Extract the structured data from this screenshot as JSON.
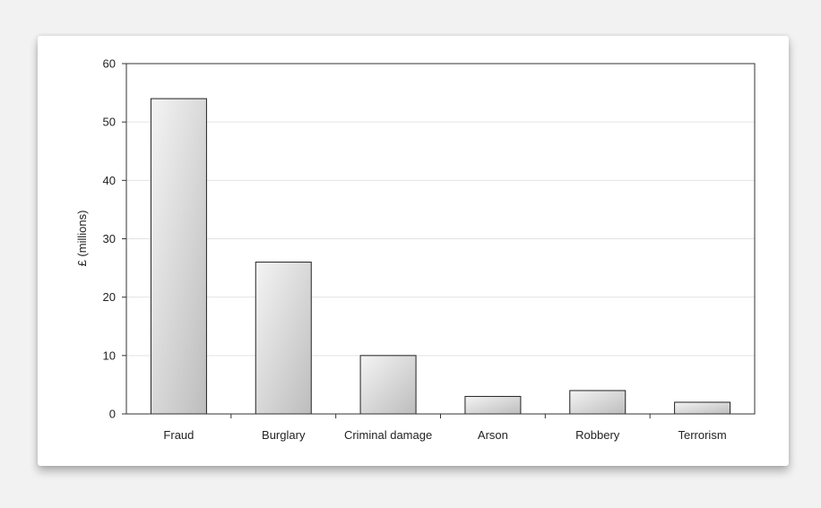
{
  "chart_data": {
    "type": "bar",
    "title": "",
    "xlabel": "",
    "ylabel": "£ (millions)",
    "categories": [
      "Fraud",
      "Burglary",
      "Criminal damage",
      "Arson",
      "Robbery",
      "Terrorism"
    ],
    "values": [
      54,
      26,
      10,
      3,
      4,
      2
    ],
    "ylim": [
      0,
      60
    ],
    "yticks": [
      0,
      10,
      20,
      30,
      40,
      50,
      60
    ],
    "grid": true,
    "legend": "none",
    "colors": {
      "bar_fill_light": "#f4f4f4",
      "bar_fill_dark": "#bdbdbd",
      "bar_stroke": "#222222",
      "gridline": "#e3e3e3",
      "axis": "#333333"
    }
  }
}
